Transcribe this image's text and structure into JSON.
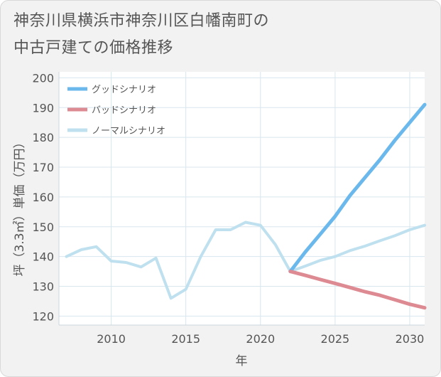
{
  "title": [
    "神奈川県横浜市神奈川区白幡南町の",
    "中古戸建ての価格推移"
  ],
  "chart_data": {
    "type": "line",
    "xlabel": "年",
    "ylabel": "坪（3.3㎡）単価（万円）",
    "xlim": [
      2006.5,
      2031
    ],
    "ylim": [
      117,
      202
    ],
    "xticks": [
      2010,
      2015,
      2020,
      2025,
      2030
    ],
    "yticks": [
      120,
      130,
      140,
      150,
      160,
      170,
      180,
      190,
      200
    ],
    "grid": true,
    "legend_position": "top-left",
    "series": [
      {
        "name": "グッドシナリオ",
        "color": "#6bb8ec",
        "x": [
          2022,
          2023,
          2024,
          2025,
          2026,
          2027,
          2028,
          2029,
          2030,
          2031
        ],
        "values": [
          135,
          141.5,
          147.5,
          153.5,
          160.5,
          166.5,
          172.5,
          179,
          185,
          191
        ]
      },
      {
        "name": "バッドシナリオ",
        "color": "#dd8a92",
        "x": [
          2022,
          2023,
          2024,
          2025,
          2026,
          2027,
          2028,
          2029,
          2030,
          2031
        ],
        "values": [
          135,
          133.7,
          132.3,
          131,
          129.6,
          128.2,
          127,
          125.5,
          124,
          122.8
        ]
      },
      {
        "name": "ノーマルシナリオ",
        "color": "#bfe0ee",
        "x": [
          2007,
          2008,
          2009,
          2010,
          2011,
          2012,
          2013,
          2014,
          2015,
          2016,
          2017,
          2018,
          2019,
          2020,
          2021,
          2022,
          2023,
          2024,
          2025,
          2026,
          2027,
          2028,
          2029,
          2030,
          2031
        ],
        "values": [
          140,
          142.3,
          143.3,
          138.5,
          138,
          136.5,
          139.5,
          126,
          129,
          140,
          149,
          149,
          151.5,
          150.5,
          144,
          135,
          136.8,
          138.7,
          140,
          142,
          143.5,
          145.3,
          147,
          149,
          150.5
        ]
      }
    ]
  }
}
